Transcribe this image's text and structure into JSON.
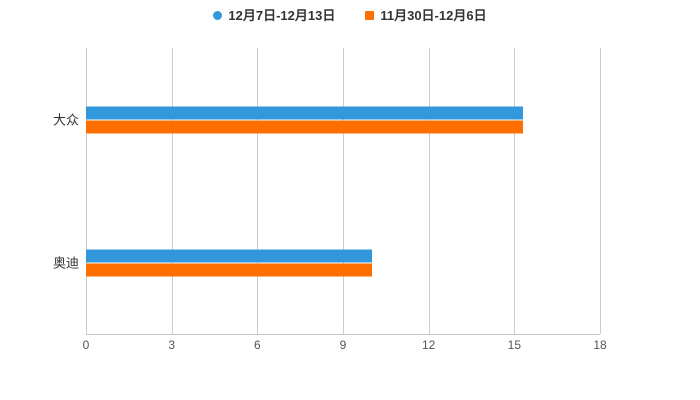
{
  "page": {
    "background": "#ffffff"
  },
  "chart_data": {
    "type": "bar",
    "orientation": "horizontal",
    "title": "",
    "categories": [
      "大众",
      "奥迪"
    ],
    "series": [
      {
        "name": "12月7日-12月13日",
        "color": "#3398DB",
        "marker": "circle-marker",
        "values": [
          15.3,
          10
        ]
      },
      {
        "name": "11月30日-12月6日",
        "color": "#FF6F00",
        "marker": "square-marker",
        "values": [
          15.3,
          10
        ]
      }
    ],
    "x_ticks": [
      "0",
      "3",
      "6",
      "9",
      "12",
      "15",
      "18"
    ],
    "xlim": [
      0,
      18
    ],
    "grid": true,
    "legend_position": "top-center",
    "style": {
      "grid_color": "#cccccc",
      "axis_line_color": "#c8c8c8",
      "tick_label_color": "#555555",
      "category_label_color": "#333333",
      "legend_text_color": "#333333"
    }
  }
}
